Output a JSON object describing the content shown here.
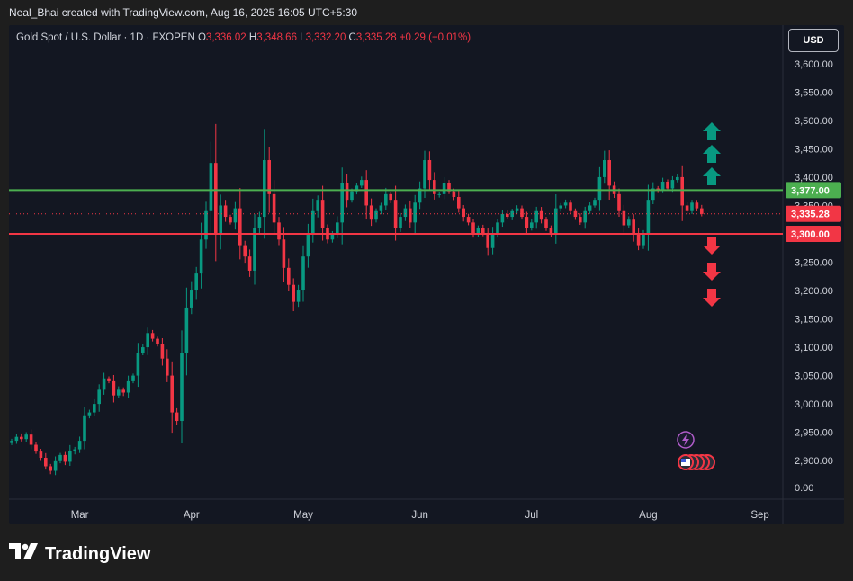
{
  "header": {
    "caption": "Neal_Bhai created with TradingView.com, Aug 16, 2025 16:05 UTC+5:30"
  },
  "legend": {
    "symbol": "Gold Spot / U.S. Dollar · 1D · FXOPEN",
    "o_label": "O",
    "o_value": "3,336.02",
    "h_label": "H",
    "h_value": "3,348.66",
    "l_label": "L",
    "l_value": "3,332.20",
    "c_label": "C",
    "c_value": "3,335.28",
    "change": "+0.29 (+0.01%)"
  },
  "currency_button": "USD",
  "footer": {
    "brand": "TradingView"
  },
  "colors": {
    "up": "#089981",
    "down": "#f23645",
    "resistance": "#4caf50",
    "support": "#f23645",
    "background": "#131722"
  },
  "chart_data": {
    "type": "candlestick",
    "symbol": "XAUUSD",
    "timeframe": "1D",
    "y_axis": {
      "range": [
        2840,
        3660
      ],
      "ticks": [
        "3,600.00",
        "3,550.00",
        "3,500.00",
        "3,450.00",
        "3,400.00",
        "3,350.00",
        "3,300.00",
        "3,250.00",
        "3,200.00",
        "3,150.00",
        "3,100.00",
        "3,050.00",
        "3,000.00",
        "2,950.00",
        "2,900.00"
      ],
      "tick_values": [
        3600,
        3550,
        3500,
        3450,
        3400,
        3350,
        3300,
        3250,
        3200,
        3150,
        3100,
        3050,
        3000,
        2950,
        2900
      ],
      "extra_tick": "0.00"
    },
    "x_axis": {
      "labels": [
        "Mar",
        "Apr",
        "May",
        "Jun",
        "Jul",
        "Aug",
        "Sep"
      ],
      "label_bar_index": [
        14,
        37,
        60,
        84,
        107,
        131,
        154
      ]
    },
    "levels": [
      {
        "name": "resistance",
        "value": 3377,
        "label": "3,377.00"
      },
      {
        "name": "support",
        "value": 3300,
        "label": "3,300.00"
      }
    ],
    "last_price": {
      "value": 3335.28,
      "label": "3,335.28"
    },
    "closes": [
      2935,
      2942,
      2938,
      2946,
      2928,
      2916,
      2905,
      2890,
      2882,
      2899,
      2910,
      2898,
      2917,
      2920,
      2935,
      2980,
      2985,
      3000,
      3025,
      3045,
      3040,
      3015,
      3025,
      3020,
      3040,
      3050,
      3090,
      3100,
      3125,
      3115,
      3105,
      3080,
      3050,
      2985,
      2970,
      3090,
      3170,
      3200,
      3230,
      3290,
      3340,
      3425,
      3300,
      3350,
      3330,
      3320,
      3345,
      3280,
      3260,
      3235,
      3310,
      3330,
      3430,
      3370,
      3320,
      3290,
      3240,
      3210,
      3180,
      3200,
      3260,
      3300,
      3340,
      3360,
      3310,
      3290,
      3300,
      3320,
      3390,
      3360,
      3375,
      3385,
      3395,
      3350,
      3325,
      3340,
      3350,
      3370,
      3360,
      3310,
      3330,
      3345,
      3320,
      3355,
      3380,
      3430,
      3395,
      3370,
      3370,
      3390,
      3375,
      3365,
      3345,
      3330,
      3320,
      3300,
      3310,
      3300,
      3275,
      3300,
      3320,
      3335,
      3330,
      3340,
      3345,
      3330,
      3310,
      3320,
      3340,
      3325,
      3310,
      3300,
      3345,
      3350,
      3355,
      3340,
      3330,
      3320,
      3340,
      3350,
      3360,
      3400,
      3430,
      3385,
      3370,
      3340,
      3315,
      3325,
      3300,
      3280,
      3300,
      3360,
      3380,
      3378,
      3392,
      3380,
      3395,
      3400,
      3350,
      3340,
      3355,
      3345,
      3335
    ]
  }
}
